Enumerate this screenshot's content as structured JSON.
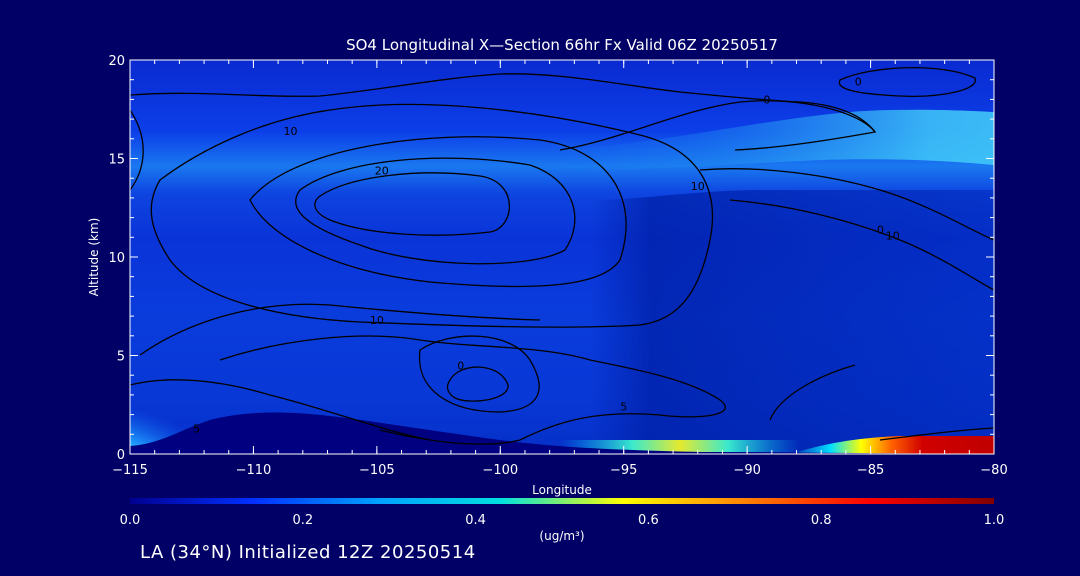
{
  "chart_data": {
    "type": "heatmap",
    "title": "SO4 Longitudinal X—Section 66hr  Fx Valid 06Z 20250517",
    "xlabel": "Longitude",
    "ylabel": "Altitude (km)",
    "xlim": [
      -115,
      -80
    ],
    "ylim": [
      0,
      20
    ],
    "x_ticks": [
      "−115",
      "−110",
      "−105",
      "−100",
      "−95",
      "−90",
      "−85",
      "−80"
    ],
    "y_ticks": [
      "0",
      "5",
      "10",
      "15",
      "20"
    ],
    "colorbar": {
      "min": 0.0,
      "max": 1.0,
      "ticks": [
        "0.0",
        "0.2",
        "0.4",
        "0.6",
        "0.8",
        "1.0"
      ],
      "units": "(ug/m³)",
      "colors": [
        "#000090",
        "#0030ff",
        "#00a0ff",
        "#00e0e0",
        "#ffff00",
        "#ff8000",
        "#ff0000",
        "#800000"
      ]
    },
    "contour_labels": [
      {
        "text": "20",
        "lon": -104.8,
        "alt": 14.2
      },
      {
        "text": "10",
        "lon": -108.5,
        "alt": 16.2
      },
      {
        "text": "10",
        "lon": -105.0,
        "alt": 6.6
      },
      {
        "text": "10",
        "lon": -92.0,
        "alt": 13.4
      },
      {
        "text": "10",
        "lon": -84.1,
        "alt": 10.9
      },
      {
        "text": "0",
        "lon": -89.2,
        "alt": 17.8
      },
      {
        "text": "0",
        "lon": -85.5,
        "alt": 18.7
      },
      {
        "text": "0",
        "lon": -101.6,
        "alt": 4.3
      },
      {
        "text": "0",
        "lon": -84.6,
        "alt": 11.2
      },
      {
        "text": "5",
        "lon": -112.3,
        "alt": 1.1
      },
      {
        "text": "5",
        "lon": -95.0,
        "alt": 2.2
      }
    ],
    "footer": "LA (34°N) Initialized 12Z 20250514"
  }
}
